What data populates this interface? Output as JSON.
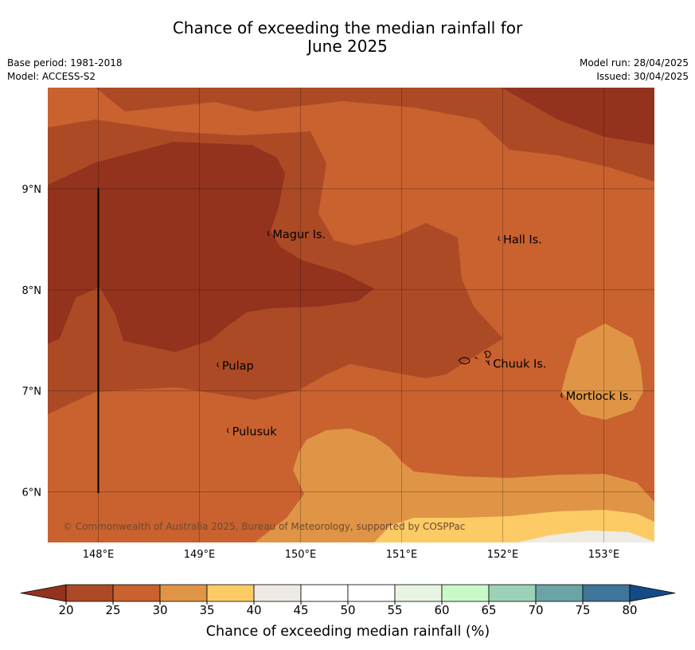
{
  "header": {
    "title_line1": "Chance of exceeding the median rainfall for",
    "title_line2": "June 2025",
    "base_period": "Base period: 1981-2018",
    "model": "Model: ACCESS-S2",
    "model_run": "Model run: 28/04/2025",
    "issued": "Issued: 30/04/2025"
  },
  "map": {
    "lon_range": [
      147.5,
      153.5
    ],
    "lat_range": [
      5.5,
      10.0
    ],
    "lat_ticks": [
      "9°N",
      "8°N",
      "7°N",
      "6°N"
    ],
    "lon_ticks": [
      "148°E",
      "149°E",
      "150°E",
      "151°E",
      "152°E",
      "153°E"
    ],
    "places": [
      {
        "name": "Magur Is.",
        "lon": 149.7,
        "lat": 8.55
      },
      {
        "name": "Hall Is.",
        "lon": 151.98,
        "lat": 8.5
      },
      {
        "name": "Pulap",
        "lon": 149.2,
        "lat": 7.25
      },
      {
        "name": "Chuuk Is.",
        "lon": 151.88,
        "lat": 7.27
      },
      {
        "name": "Mortlock Is.",
        "lon": 152.6,
        "lat": 6.95
      },
      {
        "name": "Pulusuk",
        "lon": 149.3,
        "lat": 6.6
      }
    ],
    "copyright": "© Commonwealth of Australia 2025, Bureau of Meteorology, supported by COSPPac"
  },
  "colorbar": {
    "ticks": [
      "20",
      "25",
      "30",
      "35",
      "40",
      "45",
      "50",
      "55",
      "60",
      "65",
      "70",
      "75",
      "80"
    ],
    "colors": [
      "#ad4a26",
      "#c9622f",
      "#df9545",
      "#fdcb66",
      "#edebe4",
      "#ffffff",
      "#ffffff",
      "#e8f5e4",
      "#c9f8c9",
      "#9bd1b7",
      "#6ba4a6",
      "#3e7599"
    ],
    "low_extend_color": "#93331d",
    "high_extend_color": "#154b85",
    "label": "Chance of exceeding median rainfall (%)"
  }
}
